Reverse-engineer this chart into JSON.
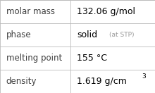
{
  "rows": [
    {
      "label": "molar mass",
      "value": "132.06 g/mol",
      "value_suffix": null,
      "superscript": null
    },
    {
      "label": "phase",
      "value": "solid",
      "value_suffix": "(at STP)",
      "superscript": null
    },
    {
      "label": "melting point",
      "value": "155 °C",
      "value_suffix": null,
      "superscript": null
    },
    {
      "label": "density",
      "value": "1.619 g/cm",
      "value_suffix": null,
      "superscript": "3"
    }
  ],
  "col_split": 0.455,
  "bg_color": "#ffffff",
  "border_color": "#bbbbbb",
  "label_color": "#404040",
  "value_color": "#000000",
  "suffix_color": "#999999",
  "font_size_label": 8.5,
  "font_size_value": 9.0,
  "font_size_suffix": 6.5,
  "font_size_super": 6.5
}
